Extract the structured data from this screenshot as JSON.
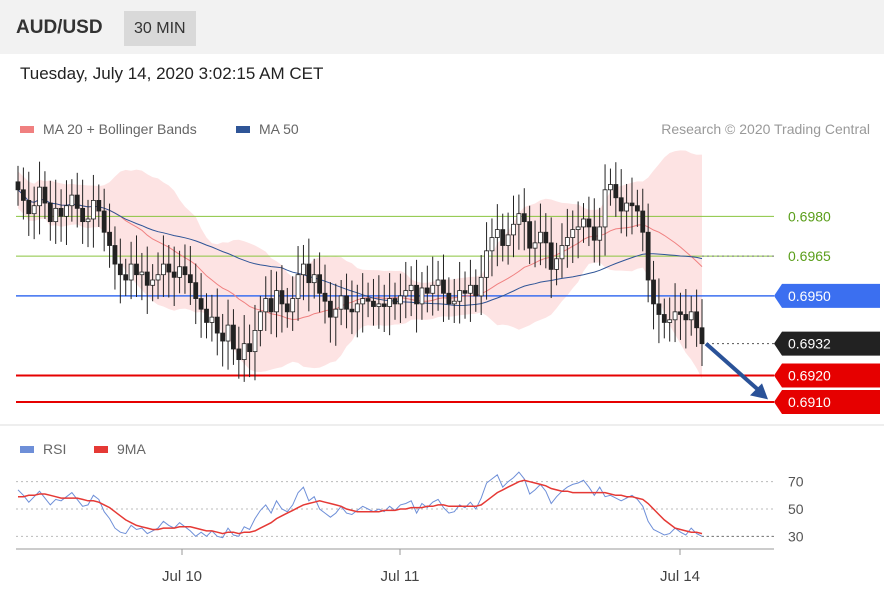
{
  "header": {
    "pair": "AUD/USD",
    "timeframe": "30 MIN"
  },
  "datetime": "Tuesday, July 14, 2020 3:02:15 AM CET",
  "legend": {
    "ma20": "MA 20 + Bollinger Bands",
    "ma50": "MA 50",
    "rsi": "RSI",
    "rsi_ma": "9MA",
    "credit": "Research © 2020 Trading Central"
  },
  "colors": {
    "ma20": "#f08080",
    "ma50": "#2f5597",
    "bollinger_fill": "#fde3e3",
    "candles": "#222222",
    "green_level": "#8ac43f",
    "blue_level": "#3b6ff0",
    "red_level": "#e60000",
    "current": "#222222",
    "rsi": "#6e8fd8",
    "rsi_ma": "#e53935",
    "arrow": "#2a5298"
  },
  "chart_data": [
    {
      "type": "candlestick",
      "x_ticks": [
        "Jul 10",
        "Jul 11",
        "Jul 14"
      ],
      "levels": [
        {
          "label": "0.6980",
          "value": 0.698,
          "style": "green"
        },
        {
          "label": "0.6965",
          "value": 0.6965,
          "style": "green"
        },
        {
          "label": "0.6950",
          "value": 0.695,
          "style": "blue"
        },
        {
          "label": "0.6932",
          "value": 0.6932,
          "style": "current"
        },
        {
          "label": "0.6920",
          "value": 0.692,
          "style": "red"
        },
        {
          "label": "0.6910",
          "value": 0.691,
          "style": "red"
        }
      ],
      "close_series": [
        0.699,
        0.6986,
        0.6981,
        0.6984,
        0.6991,
        0.6985,
        0.6978,
        0.6983,
        0.698,
        0.6984,
        0.6988,
        0.6983,
        0.6978,
        0.6979,
        0.6986,
        0.6982,
        0.6974,
        0.6969,
        0.6962,
        0.6958,
        0.6956,
        0.6962,
        0.6958,
        0.6959,
        0.6954,
        0.6956,
        0.6958,
        0.6962,
        0.6959,
        0.6957,
        0.6961,
        0.6958,
        0.6955,
        0.6949,
        0.6945,
        0.694,
        0.6942,
        0.6936,
        0.6933,
        0.6939,
        0.693,
        0.6926,
        0.6932,
        0.6929,
        0.6937,
        0.6944,
        0.6949,
        0.6944,
        0.6952,
        0.6947,
        0.6944,
        0.6949,
        0.6958,
        0.6962,
        0.6955,
        0.6958,
        0.6951,
        0.6948,
        0.6942,
        0.6945,
        0.695,
        0.6945,
        0.6944,
        0.6947,
        0.6949,
        0.6948,
        0.6946,
        0.6947,
        0.6946,
        0.6949,
        0.6947,
        0.695,
        0.6952,
        0.6954,
        0.6947,
        0.6953,
        0.6951,
        0.6954,
        0.6956,
        0.6951,
        0.6947,
        0.6948,
        0.6952,
        0.6951,
        0.6954,
        0.695,
        0.6957,
        0.6967,
        0.6972,
        0.6975,
        0.6969,
        0.6973,
        0.6977,
        0.6981,
        0.6978,
        0.6968,
        0.697,
        0.6974,
        0.697,
        0.696,
        0.6964,
        0.6969,
        0.6972,
        0.6975,
        0.6976,
        0.6979,
        0.6976,
        0.6971,
        0.6976,
        0.699,
        0.6992,
        0.6987,
        0.6982,
        0.6985,
        0.6984,
        0.6982,
        0.6974,
        0.6956,
        0.6947,
        0.6943,
        0.694,
        0.6941,
        0.6944,
        0.6943,
        0.6941,
        0.6944,
        0.6938,
        0.6932
      ]
    },
    {
      "type": "line",
      "title": "RSI",
      "y_ticks": [
        70,
        50,
        30
      ],
      "ylim": [
        20,
        80
      ],
      "series": [
        {
          "name": "RSI",
          "values": [
            64,
            60,
            55,
            59,
            63,
            58,
            53,
            57,
            56,
            59,
            62,
            57,
            52,
            53,
            60,
            57,
            48,
            43,
            36,
            33,
            32,
            38,
            35,
            36,
            32,
            34,
            36,
            41,
            38,
            36,
            40,
            37,
            34,
            30,
            33,
            30,
            34,
            30,
            29,
            36,
            31,
            30,
            37,
            35,
            43,
            49,
            53,
            47,
            56,
            50,
            48,
            53,
            62,
            66,
            56,
            59,
            50,
            47,
            44,
            47,
            52,
            47,
            46,
            49,
            52,
            50,
            48,
            50,
            48,
            52,
            49,
            53,
            54,
            56,
            47,
            54,
            51,
            55,
            57,
            51,
            47,
            48,
            53,
            51,
            55,
            50,
            58,
            69,
            72,
            75,
            66,
            70,
            73,
            77,
            72,
            61,
            64,
            68,
            63,
            54,
            59,
            63,
            66,
            68,
            69,
            71,
            66,
            60,
            66,
            59,
            60,
            58,
            56,
            58,
            60,
            57,
            52,
            41,
            35,
            33,
            31,
            32,
            36,
            33,
            31,
            36,
            32,
            30
          ]
        },
        {
          "name": "9MA",
          "values": [
            59,
            59,
            60,
            60,
            61,
            61,
            60,
            59,
            58,
            58,
            58,
            58,
            57,
            56,
            56,
            55,
            53,
            51,
            48,
            45,
            42,
            40,
            38,
            37,
            36,
            35,
            35,
            36,
            36,
            36,
            37,
            37,
            37,
            36,
            35,
            34,
            34,
            33,
            32,
            33,
            33,
            32,
            33,
            33,
            34,
            36,
            38,
            40,
            43,
            45,
            47,
            49,
            51,
            53,
            54,
            55,
            56,
            55,
            54,
            53,
            52,
            50,
            49,
            48,
            48,
            48,
            48,
            48,
            49,
            49,
            49,
            50,
            50,
            51,
            51,
            51,
            52,
            52,
            53,
            53,
            52,
            52,
            52,
            52,
            52,
            52,
            53,
            56,
            59,
            62,
            64,
            66,
            68,
            70,
            71,
            70,
            69,
            68,
            67,
            65,
            64,
            63,
            63,
            62,
            62,
            62,
            62,
            62,
            62,
            62,
            61,
            60,
            60,
            59,
            59,
            58,
            57,
            54,
            50,
            46,
            42,
            39,
            36,
            35,
            34,
            33,
            33,
            32
          ]
        }
      ]
    }
  ]
}
